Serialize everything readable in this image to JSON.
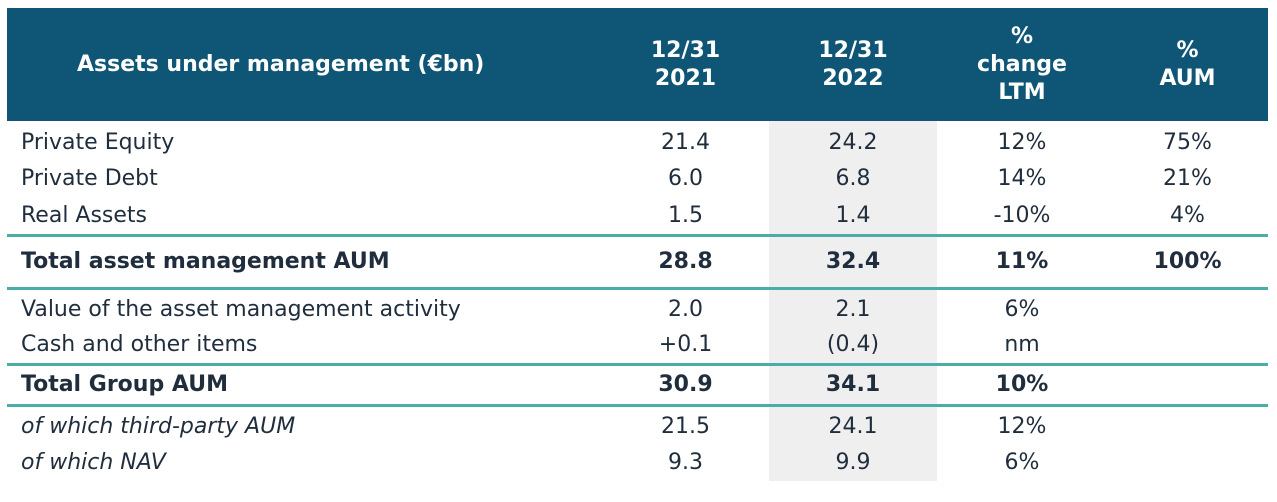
{
  "header": {
    "label": "Assets under management (€bn)",
    "col_2021": [
      "12/31",
      "2021"
    ],
    "col_2022": [
      "12/31",
      "2022"
    ],
    "col_change": [
      "%",
      "change",
      "LTM"
    ],
    "col_aum": [
      "%",
      "AUM"
    ]
  },
  "rows": [
    {
      "label": "Private Equity",
      "y2021": "21.4",
      "y2022": "24.2",
      "change": "12%",
      "aum": "75%"
    },
    {
      "label": "Private Debt",
      "y2021": "6.0",
      "y2022": "6.8",
      "change": "14%",
      "aum": "21%"
    },
    {
      "label": "Real Assets",
      "y2021": "1.5",
      "y2022": "1.4",
      "change": "-10%",
      "aum": "4%"
    },
    {
      "label": "Total asset management AUM",
      "y2021": "28.8",
      "y2022": "32.4",
      "change": "11%",
      "aum": "100%"
    },
    {
      "label": "Value of the asset management activity",
      "y2021": "2.0",
      "y2022": "2.1",
      "change": "6%",
      "aum": ""
    },
    {
      "label": "Cash and other items",
      "y2021": "+0.1",
      "y2022": "(0.4)",
      "change": "nm",
      "aum": ""
    },
    {
      "label": "Total Group AUM",
      "y2021": "30.9",
      "y2022": "34.1",
      "change": "10%",
      "aum": ""
    },
    {
      "label": "of which third-party AUM",
      "y2021": "21.5",
      "y2022": "24.1",
      "change": "12%",
      "aum": ""
    },
    {
      "label": "of which NAV",
      "y2021": "9.3",
      "y2022": "9.9",
      "change": "6%",
      "aum": ""
    }
  ],
  "colors": {
    "header_bg": "#0f5575",
    "header_text": "#ffffff",
    "divider": "#4aaea8",
    "highlight_col": "#efefef"
  }
}
